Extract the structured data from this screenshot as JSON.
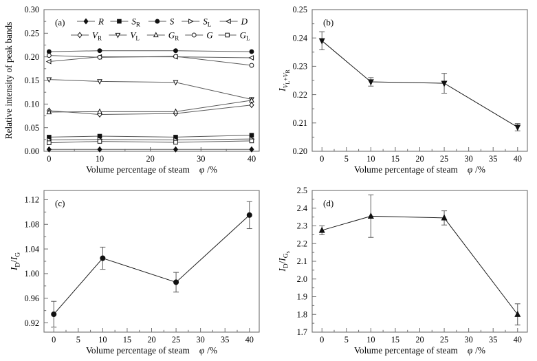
{
  "figure": {
    "background": "#ffffff",
    "xlabel": {
      "text": "Volume percentage of steam",
      "symbol": "φ",
      "unit": "/%"
    }
  },
  "chart_data": [
    {
      "id": "a",
      "type": "line",
      "panel_label": "(a)",
      "ylabel": [
        {
          "t": "Relative intensity of peak bands",
          "i": 0,
          "l": 0
        }
      ],
      "x": [
        0,
        10,
        25,
        40
      ],
      "xlim": [
        -1,
        41.5
      ],
      "ylim": [
        0,
        0.3
      ],
      "xticks": [
        0,
        10,
        20,
        30,
        40
      ],
      "xminor": [
        5,
        15,
        25,
        35
      ],
      "yticks": [
        0,
        0.05,
        0.1,
        0.15,
        0.2,
        0.25,
        0.3
      ],
      "yminor": [
        0.025,
        0.075,
        0.125,
        0.175,
        0.225,
        0.275
      ],
      "ydec": 2,
      "grid": false,
      "legend_position": "top-inside",
      "series": [
        {
          "name": "R",
          "label": {
            "main": "R",
            "sub": ""
          },
          "marker": "diamond",
          "filled": true,
          "values": [
            0.004,
            0.004,
            0.004,
            0.004
          ]
        },
        {
          "name": "SR",
          "label": {
            "main": "S",
            "sub": "R"
          },
          "marker": "square",
          "filled": true,
          "values": [
            0.03,
            0.032,
            0.03,
            0.034
          ]
        },
        {
          "name": "S",
          "label": {
            "main": "S",
            "sub": ""
          },
          "marker": "circle",
          "filled": true,
          "values": [
            0.211,
            0.213,
            0.213,
            0.211
          ]
        },
        {
          "name": "SL",
          "label": {
            "main": "S",
            "sub": "L"
          },
          "marker": "triangle-right",
          "filled": false,
          "values": [
            0.024,
            0.025,
            0.024,
            0.026
          ]
        },
        {
          "name": "D",
          "label": {
            "main": "D",
            "sub": ""
          },
          "marker": "triangle-left",
          "filled": false,
          "values": [
            0.19,
            0.2,
            0.2,
            0.198
          ]
        },
        {
          "name": "VR",
          "label": {
            "main": "V",
            "sub": "R"
          },
          "marker": "diamond",
          "filled": false,
          "values": [
            0.086,
            0.078,
            0.08,
            0.098
          ]
        },
        {
          "name": "VL",
          "label": {
            "main": "V",
            "sub": "L"
          },
          "marker": "triangle-down",
          "filled": false,
          "values": [
            0.152,
            0.148,
            0.146,
            0.11
          ]
        },
        {
          "name": "GR",
          "label": {
            "main": "G",
            "sub": "R"
          },
          "marker": "triangle-up",
          "filled": false,
          "values": [
            0.083,
            0.084,
            0.084,
            0.108
          ]
        },
        {
          "name": "G",
          "label": {
            "main": "G",
            "sub": ""
          },
          "marker": "circle",
          "filled": false,
          "values": [
            0.203,
            0.199,
            0.201,
            0.182
          ]
        },
        {
          "name": "GL",
          "label": {
            "main": "G",
            "sub": "L"
          },
          "marker": "square",
          "filled": false,
          "values": [
            0.018,
            0.021,
            0.019,
            0.022
          ]
        }
      ],
      "legend": {
        "rows": [
          [
            "R",
            "SR",
            "S",
            "SL",
            "D"
          ],
          [
            "VR",
            "VL",
            "GR",
            "G",
            "GL"
          ]
        ]
      }
    },
    {
      "id": "b",
      "type": "line",
      "panel_label": "(b)",
      "ylabel": [
        {
          "t": "I",
          "i": 1,
          "l": 0
        },
        {
          "t": "V",
          "i": 1,
          "l": 1
        },
        {
          "t": "L",
          "i": 0,
          "l": 2
        },
        {
          "t": "+",
          "i": 0,
          "l": 1
        },
        {
          "t": "V",
          "i": 1,
          "l": 1
        },
        {
          "t": "R",
          "i": 0,
          "l": 2
        }
      ],
      "x": [
        0,
        10,
        25,
        40
      ],
      "xlim": [
        -2,
        42
      ],
      "ylim": [
        0.2,
        0.25
      ],
      "xticks": [
        0,
        5,
        10,
        15,
        20,
        25,
        30,
        35,
        40
      ],
      "xminor": [
        2.5,
        7.5,
        12.5,
        17.5,
        22.5,
        27.5,
        32.5,
        37.5
      ],
      "yticks": [
        0.2,
        0.21,
        0.22,
        0.23,
        0.24,
        0.25
      ],
      "yminor": [
        0.205,
        0.215,
        0.225,
        0.235,
        0.245
      ],
      "ydec": 2,
      "grid": false,
      "series": [
        {
          "name": "IVL+VR",
          "marker": "triangle-down",
          "filled": true,
          "values": [
            0.239,
            0.2245,
            0.224,
            0.2085
          ],
          "errors": [
            0.0032,
            0.0015,
            0.0035,
            0.0013
          ]
        }
      ]
    },
    {
      "id": "c",
      "type": "line",
      "panel_label": "(c)",
      "ylabel": [
        {
          "t": "I",
          "i": 1,
          "l": 0
        },
        {
          "t": "D",
          "i": 0,
          "l": 1
        },
        {
          "t": "/",
          "i": 0,
          "l": 0
        },
        {
          "t": "I",
          "i": 1,
          "l": 0
        },
        {
          "t": "G",
          "i": 0,
          "l": 1
        }
      ],
      "x": [
        0,
        10,
        25,
        40
      ],
      "xlim": [
        -2,
        42
      ],
      "ylim": [
        0.905,
        1.135
      ],
      "xticks": [
        0,
        5,
        10,
        15,
        20,
        25,
        30,
        35,
        40
      ],
      "xminor": [
        2.5,
        7.5,
        12.5,
        17.5,
        22.5,
        27.5,
        32.5,
        37.5
      ],
      "yticks": [
        0.92,
        0.96,
        1.0,
        1.04,
        1.08,
        1.12
      ],
      "yminor": [
        0.94,
        0.98,
        1.02,
        1.06,
        1.1
      ],
      "ydec": 2,
      "grid": false,
      "series": [
        {
          "name": "ID/IG",
          "marker": "circle",
          "filled": true,
          "values": [
            0.934,
            1.025,
            0.986,
            1.095
          ],
          "errors": [
            0.021,
            0.018,
            0.016,
            0.022
          ]
        }
      ]
    },
    {
      "id": "d",
      "type": "line",
      "panel_label": "(d)",
      "ylabel": [
        {
          "t": "I",
          "i": 1,
          "l": 0
        },
        {
          "t": "D",
          "i": 0,
          "l": 1
        },
        {
          "t": "/",
          "i": 0,
          "l": 0
        },
        {
          "t": "I",
          "i": 1,
          "l": 0
        },
        {
          "t": "G",
          "i": 0,
          "l": 1
        },
        {
          "t": "s",
          "i": 0,
          "l": 2
        }
      ],
      "x": [
        0,
        10,
        25,
        40
      ],
      "xlim": [
        -2,
        42
      ],
      "ylim": [
        1.7,
        2.5
      ],
      "xticks": [
        0,
        5,
        10,
        15,
        20,
        25,
        30,
        35,
        40
      ],
      "xminor": [
        2.5,
        7.5,
        12.5,
        17.5,
        22.5,
        27.5,
        32.5,
        37.5
      ],
      "yticks": [
        1.7,
        1.8,
        1.9,
        2.0,
        2.1,
        2.2,
        2.3,
        2.4,
        2.5
      ],
      "yminor": [
        1.75,
        1.85,
        1.95,
        2.05,
        2.15,
        2.25,
        2.35,
        2.45
      ],
      "ydec": 1,
      "grid": false,
      "series": [
        {
          "name": "ID/IGs",
          "marker": "triangle-up",
          "filled": true,
          "values": [
            2.275,
            2.355,
            2.345,
            1.8
          ],
          "errors": [
            0.025,
            0.12,
            0.04,
            0.06
          ]
        }
      ]
    }
  ],
  "colors": {
    "frame": "#6e6e6e",
    "line_a": "#595959",
    "line_single": "#1a1a1a",
    "errorbar": "#5a5a5a",
    "marker_stroke": "#111111",
    "text": "#000000"
  }
}
